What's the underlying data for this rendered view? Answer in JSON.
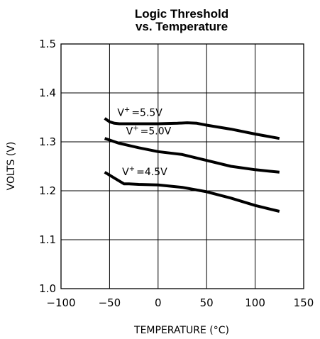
{
  "chart_data": {
    "type": "line",
    "title_line1": "Logic Threshold",
    "title_line2": "vs. Temperature",
    "xlabel": "TEMPERATURE (°C)",
    "ylabel": "VOLTS (V)",
    "xlim": [
      -100,
      150
    ],
    "ylim": [
      1.0,
      1.5
    ],
    "xticks": [
      "−100",
      "−50",
      "0",
      "50",
      "100",
      "150"
    ],
    "xtick_values": [
      -100,
      -50,
      0,
      50,
      100,
      150
    ],
    "yticks": [
      "1.0",
      "1.1",
      "1.2",
      "1.3",
      "1.4",
      "1.5"
    ],
    "ytick_values": [
      1.0,
      1.1,
      1.2,
      1.3,
      1.4,
      1.5
    ],
    "grid": true,
    "series": [
      {
        "name": "V+ = 5.5V",
        "label_prefix": "V",
        "label_sup": "+",
        "label_suffix": "=5.5V",
        "label_anchor": [
          -42,
          1.353
        ],
        "x": [
          -55,
          -50,
          -45,
          -40,
          -30,
          -20,
          0,
          20,
          30,
          40,
          50,
          75,
          100,
          125
        ],
        "y": [
          1.348,
          1.341,
          1.338,
          1.337,
          1.337,
          1.337,
          1.337,
          1.338,
          1.339,
          1.338,
          1.334,
          1.326,
          1.316,
          1.307
        ]
      },
      {
        "name": "V+ = 5.0V",
        "label_prefix": "V",
        "label_sup": "+",
        "label_suffix": "=5.0V",
        "label_anchor": [
          -33,
          1.315
        ],
        "x": [
          -55,
          -40,
          -20,
          0,
          25,
          50,
          75,
          100,
          125
        ],
        "y": [
          1.307,
          1.297,
          1.288,
          1.28,
          1.274,
          1.262,
          1.25,
          1.243,
          1.238
        ]
      },
      {
        "name": "V+ = 4.5V",
        "label_prefix": "V",
        "label_sup": "+",
        "label_suffix": "=4.5V",
        "label_anchor": [
          -37,
          1.232
        ],
        "x": [
          -55,
          -45,
          -35,
          -30,
          -20,
          0,
          25,
          50,
          75,
          100,
          125
        ],
        "y": [
          1.238,
          1.226,
          1.214,
          1.214,
          1.213,
          1.212,
          1.207,
          1.198,
          1.185,
          1.17,
          1.158
        ]
      }
    ]
  }
}
